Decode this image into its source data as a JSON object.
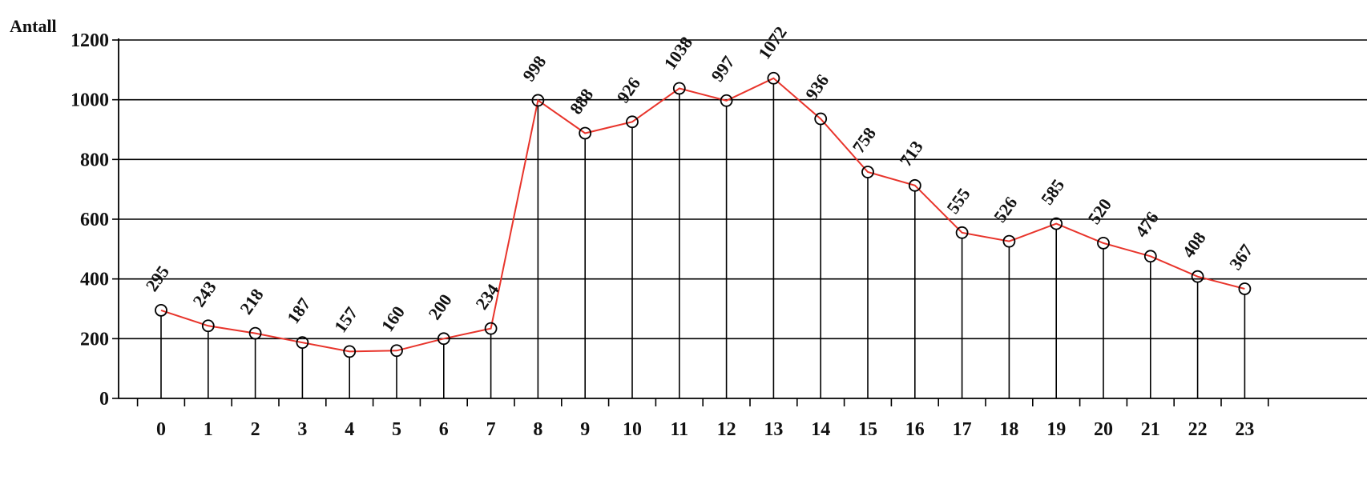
{
  "chart_data": {
    "type": "line",
    "ylabel": "Antall",
    "xlabel": "",
    "title": "",
    "x": [
      "0",
      "1",
      "2",
      "3",
      "4",
      "5",
      "6",
      "7",
      "8",
      "9",
      "10",
      "11",
      "12",
      "13",
      "14",
      "15",
      "16",
      "17",
      "18",
      "19",
      "20",
      "21",
      "22",
      "23"
    ],
    "series": [
      {
        "values": [
          295,
          243,
          218,
          187,
          157,
          160,
          200,
          234,
          998,
          888,
          926,
          1038,
          997,
          1072,
          936,
          758,
          713,
          555,
          526,
          585,
          520,
          476,
          408,
          367
        ],
        "data_labels": [
          "295",
          "243",
          "218",
          "187",
          "157",
          "160",
          "200",
          "234",
          "998",
          "888",
          "926",
          "1038",
          "997",
          "1072",
          "936",
          "758",
          "713",
          "555",
          "526",
          "585",
          "520",
          "476",
          "408",
          "367"
        ]
      }
    ],
    "ylim": [
      0,
      1200
    ],
    "yticks": [
      "0",
      "200",
      "400",
      "600",
      "800",
      "1000",
      "1200"
    ],
    "grid": "horizontal",
    "markers": "open-circle",
    "drop_lines": true,
    "line_color": "#e8342b",
    "marker_color": "#000000"
  }
}
